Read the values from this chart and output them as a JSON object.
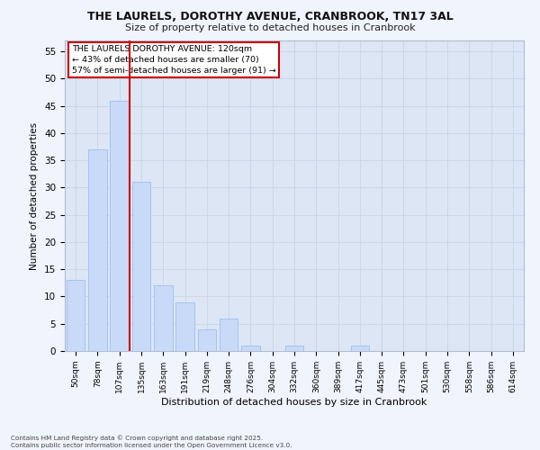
{
  "title_line1": "THE LAURELS, DOROTHY AVENUE, CRANBROOK, TN17 3AL",
  "title_line2": "Size of property relative to detached houses in Cranbrook",
  "xlabel": "Distribution of detached houses by size in Cranbrook",
  "ylabel": "Number of detached properties",
  "categories": [
    "50sqm",
    "78sqm",
    "107sqm",
    "135sqm",
    "163sqm",
    "191sqm",
    "219sqm",
    "248sqm",
    "276sqm",
    "304sqm",
    "332sqm",
    "360sqm",
    "389sqm",
    "417sqm",
    "445sqm",
    "473sqm",
    "501sqm",
    "530sqm",
    "558sqm",
    "586sqm",
    "614sqm"
  ],
  "values": [
    13,
    37,
    46,
    31,
    12,
    9,
    4,
    6,
    1,
    0,
    1,
    0,
    0,
    1,
    0,
    0,
    0,
    0,
    0,
    0,
    0
  ],
  "bar_color": "#c9daf8",
  "bar_edge_color": "#a4c2f4",
  "bar_width": 0.85,
  "marker_color": "#cc0000",
  "ylim": [
    0,
    57
  ],
  "yticks": [
    0,
    5,
    10,
    15,
    20,
    25,
    30,
    35,
    40,
    45,
    50,
    55
  ],
  "annotation_title": "THE LAURELS DOROTHY AVENUE: 120sqm",
  "annotation_line1": "← 43% of detached houses are smaller (70)",
  "annotation_line2": "57% of semi-detached houses are larger (91) →",
  "annotation_box_color": "#ffffff",
  "annotation_border_color": "#cc0000",
  "grid_color": "#cdd5e8",
  "plot_bg_color": "#dce6f5",
  "fig_bg_color": "#f0f4fc",
  "footer_line1": "Contains HM Land Registry data © Crown copyright and database right 2025.",
  "footer_line2": "Contains public sector information licensed under the Open Government Licence v3.0."
}
